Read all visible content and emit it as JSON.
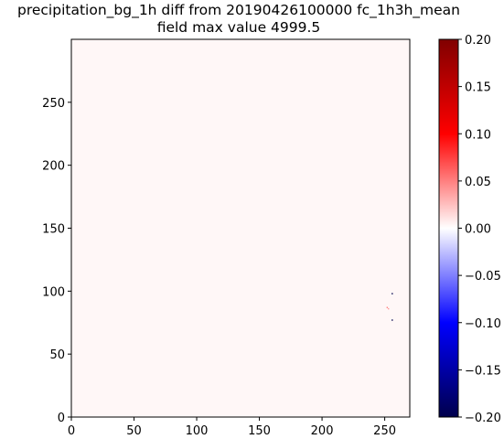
{
  "chart_data": {
    "type": "heatmap",
    "title": "precipitation_bg_1h diff from 20190426100000 fc_1h3h_mean",
    "subtitle": "field max value 4999.5",
    "xlabel": "",
    "ylabel": "",
    "xlim": [
      0,
      270
    ],
    "ylim": [
      0,
      300
    ],
    "x_ticks": [
      0,
      50,
      100,
      150,
      200,
      250
    ],
    "y_ticks": [
      0,
      50,
      100,
      150,
      200,
      250
    ],
    "grid": false,
    "background_value": 0.003,
    "colorbar": {
      "colormap": "seismic",
      "min": -0.2,
      "max": 0.2,
      "ticks": [
        0.2,
        0.15,
        0.1,
        0.05,
        0.0,
        -0.05,
        -0.1,
        -0.15,
        -0.2
      ],
      "tick_labels": [
        "0.20",
        "0.15",
        "0.10",
        "0.05",
        "0.00",
        "−0.05",
        "−0.10",
        "−0.15",
        "−0.20"
      ],
      "colors": [
        "#00004c",
        "#0000ff",
        "#ffffff",
        "#ff0000",
        "#800000"
      ]
    },
    "anomalies": [
      {
        "x": 256,
        "y": 98,
        "value": -0.2
      },
      {
        "x": 252,
        "y": 87,
        "value": 0.05
      },
      {
        "x": 253,
        "y": 86,
        "value": 0.04
      },
      {
        "x": 256,
        "y": 77,
        "value": -0.2
      }
    ]
  }
}
